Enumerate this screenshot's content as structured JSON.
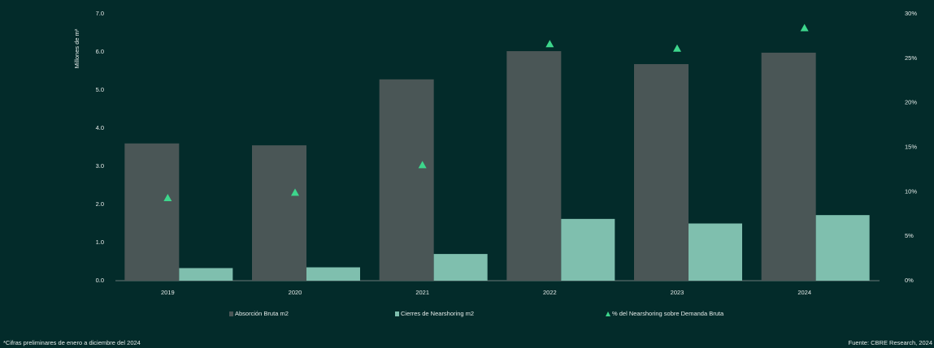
{
  "chart_data": {
    "type": "bar",
    "y_axis_label": "Millones de m²",
    "categories": [
      "2019",
      "2020",
      "2021",
      "2022",
      "2023",
      "2024"
    ],
    "series": [
      {
        "name": "Absorción Bruta m2",
        "type": "bar",
        "color": "#4a5656",
        "values": [
          3.6,
          3.55,
          5.28,
          6.02,
          5.68,
          5.98
        ]
      },
      {
        "name": "Cierres de Nearshoring m2",
        "type": "bar",
        "color": "#7fbfae",
        "values": [
          0.33,
          0.35,
          0.7,
          1.62,
          1.5,
          1.72
        ]
      },
      {
        "name": "% del Nearshoring sobre Demanda Bruta",
        "type": "scatter",
        "axis": "y2",
        "color": "#3dd68c",
        "values": [
          9.3,
          9.9,
          13.0,
          26.6,
          26.1,
          28.4
        ]
      }
    ],
    "ylim": [
      0,
      7
    ],
    "yticks": [
      {
        "value": 0,
        "label": "0.0"
      },
      {
        "value": 1,
        "label": "1.0"
      },
      {
        "value": 2,
        "label": "2.0"
      },
      {
        "value": 3,
        "label": "3.0"
      },
      {
        "value": 4,
        "label": "4.0"
      },
      {
        "value": 5,
        "label": "5.0"
      },
      {
        "value": 6,
        "label": "6.0"
      },
      {
        "value": 7,
        "label": "7.0"
      }
    ],
    "y2lim": [
      0,
      30
    ],
    "y2ticks": [
      {
        "value": 0,
        "label": "0%"
      },
      {
        "value": 5,
        "label": "5%"
      },
      {
        "value": 10,
        "label": "10%"
      },
      {
        "value": 15,
        "label": "15%"
      },
      {
        "value": 20,
        "label": "20%"
      },
      {
        "value": 25,
        "label": "25%"
      },
      {
        "value": 30,
        "label": "30%"
      }
    ],
    "grid": false,
    "footnote": "*Cifras preliminares de enero a diciembre del 2024",
    "source": "Fuente: CBRE Research, 2024"
  }
}
